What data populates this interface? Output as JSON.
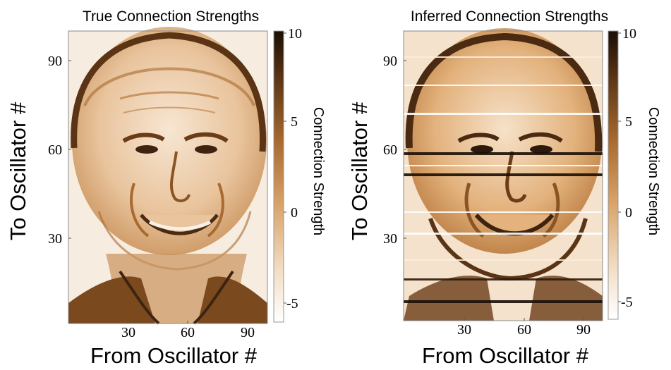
{
  "chart_data": [
    {
      "type": "heatmap",
      "title": "True Connection Strengths",
      "xlabel": "From Oscillator #",
      "ylabel": "To Oscillator #",
      "x_ticks": [
        30,
        60,
        90
      ],
      "y_ticks": [
        30,
        60,
        90
      ],
      "xlim": [
        1,
        100
      ],
      "ylim": [
        1,
        100
      ],
      "image_content": "face portrait (true connection matrix)",
      "colorbar": {
        "label": "Connection Strength",
        "ticks": [
          10,
          5,
          0,
          -5
        ],
        "range": [
          -6,
          10
        ],
        "colormap": [
          "#ffffff",
          "#f2ddc4",
          "#d9a46b",
          "#a86a30",
          "#5a3414",
          "#1a0f06"
        ]
      }
    },
    {
      "type": "heatmap",
      "title": "Inferred Connection Strengths",
      "xlabel": "From Oscillator #",
      "ylabel": "To Oscillator #",
      "x_ticks": [
        30,
        60,
        90
      ],
      "y_ticks": [
        30,
        60,
        90
      ],
      "xlim": [
        1,
        100
      ],
      "ylim": [
        1,
        100
      ],
      "image_content": "face portrait with horizontal streak artifacts (inferred connection matrix)",
      "colorbar": {
        "label": "Connection Strength",
        "ticks": [
          10,
          5,
          0,
          -5
        ],
        "range": [
          -6,
          10
        ],
        "colormap": [
          "#ffffff",
          "#f2ddc4",
          "#d9a46b",
          "#a86a30",
          "#5a3414",
          "#1a0f06"
        ]
      }
    }
  ]
}
